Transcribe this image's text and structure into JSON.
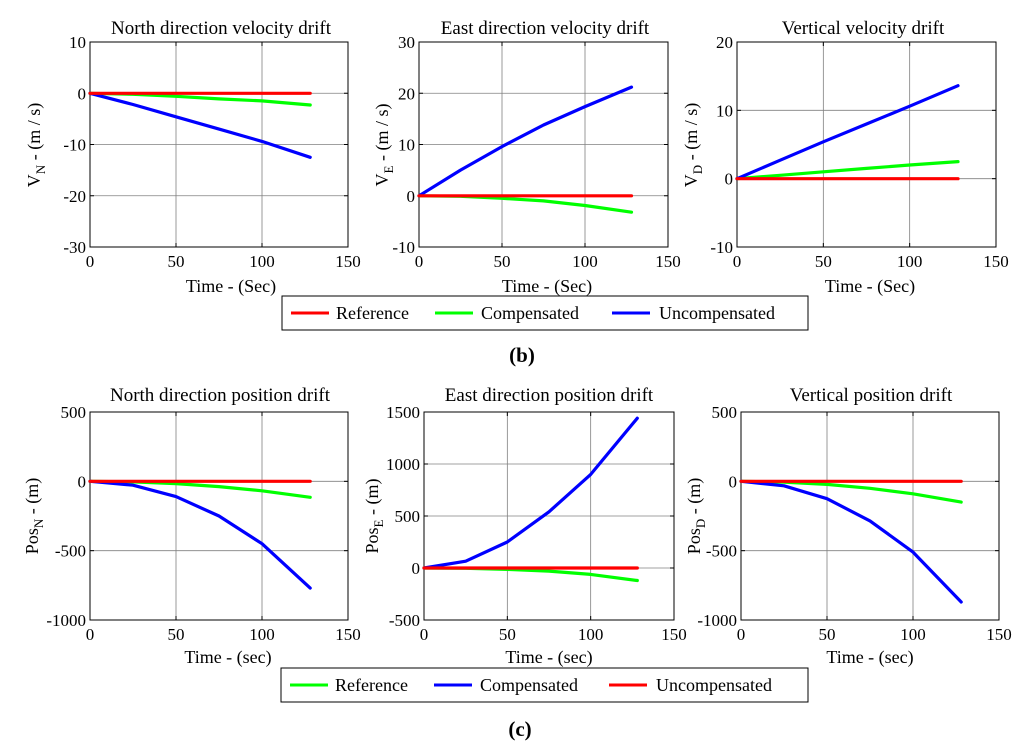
{
  "figure": {
    "panel_b_label": "b",
    "panel_c_label": "c"
  },
  "legend_b": [
    {
      "label": "Reference",
      "color": "#ff0000"
    },
    {
      "label": "Compensated",
      "color": "#00ff00"
    },
    {
      "label": "Uncompensated",
      "color": "#0000ff"
    }
  ],
  "legend_c": [
    {
      "label": "Reference",
      "color": "#00ff00"
    },
    {
      "label": "Compensated",
      "color": "#0000ff"
    },
    {
      "label": "Uncompensated",
      "color": "#ff0000"
    }
  ],
  "chart_data": [
    {
      "type": "line",
      "title": "North direction velocity drift",
      "ylabel_main": "V",
      "ylabel_sub": "N",
      "ylabel_rest": " - (m / s)",
      "xlabel": "Time - (Sec)",
      "xlim": [
        0,
        150
      ],
      "ylim": [
        -30,
        10
      ],
      "xticks": [
        0,
        50,
        100,
        150
      ],
      "yticks": [
        -30,
        -20,
        -10,
        0,
        10
      ],
      "grid": true,
      "series": [
        {
          "name": "Reference",
          "color": "#ff0000",
          "x": [
            0,
            128
          ],
          "y": [
            0,
            0
          ]
        },
        {
          "name": "Compensated",
          "color": "#00ff00",
          "x": [
            0,
            25,
            50,
            75,
            100,
            128
          ],
          "y": [
            0,
            -0.2,
            -0.6,
            -1.1,
            -1.5,
            -2.3
          ]
        },
        {
          "name": "Uncompensated",
          "color": "#0000ff",
          "x": [
            0,
            25,
            50,
            75,
            100,
            128
          ],
          "y": [
            0,
            -2.2,
            -4.6,
            -7.0,
            -9.4,
            -12.5
          ]
        }
      ]
    },
    {
      "type": "line",
      "title": "East direction velocity drift",
      "ylabel_main": "V",
      "ylabel_sub": "E",
      "ylabel_rest": " - (m / s)",
      "xlabel": "Time - (Sec)",
      "xlim": [
        0,
        150
      ],
      "ylim": [
        -10,
        30
      ],
      "xticks": [
        0,
        50,
        100,
        150
      ],
      "yticks": [
        -10,
        0,
        10,
        20,
        30
      ],
      "grid": true,
      "series": [
        {
          "name": "Reference",
          "color": "#ff0000",
          "x": [
            0,
            128
          ],
          "y": [
            0,
            0
          ]
        },
        {
          "name": "Compensated",
          "color": "#00ff00",
          "x": [
            0,
            25,
            50,
            75,
            100,
            128
          ],
          "y": [
            0,
            -0.1,
            -0.5,
            -1.0,
            -1.9,
            -3.2
          ]
        },
        {
          "name": "Uncompensated",
          "color": "#0000ff",
          "x": [
            0,
            25,
            50,
            75,
            100,
            128
          ],
          "y": [
            0,
            5.0,
            9.6,
            13.8,
            17.4,
            21.2
          ]
        }
      ]
    },
    {
      "type": "line",
      "title": "Vertical velocity  drift",
      "ylabel_main": "V",
      "ylabel_sub": "D",
      "ylabel_rest": " - (m / s)",
      "xlabel": "Time - (Sec)",
      "xlim": [
        0,
        150
      ],
      "ylim": [
        -10,
        20
      ],
      "xticks": [
        0,
        50,
        100,
        150
      ],
      "yticks": [
        -10,
        0,
        10,
        20
      ],
      "grid": true,
      "series": [
        {
          "name": "Reference",
          "color": "#ff0000",
          "x": [
            0,
            128
          ],
          "y": [
            0,
            0
          ]
        },
        {
          "name": "Compensated",
          "color": "#00ff00",
          "x": [
            0,
            25,
            50,
            75,
            100,
            128
          ],
          "y": [
            0,
            0.5,
            1.0,
            1.5,
            2.0,
            2.5
          ]
        },
        {
          "name": "Uncompensated",
          "color": "#0000ff",
          "x": [
            0,
            25,
            50,
            75,
            100,
            128
          ],
          "y": [
            0,
            2.7,
            5.4,
            8.0,
            10.6,
            13.6
          ]
        }
      ]
    },
    {
      "type": "line",
      "title": "North direction position drift",
      "ylabel_main": "Pos",
      "ylabel_sub": "N",
      "ylabel_rest": " - (m)",
      "xlabel": "Time - (sec)",
      "xlim": [
        0,
        150
      ],
      "ylim": [
        -1000,
        500
      ],
      "xticks": [
        0,
        50,
        100,
        150
      ],
      "yticks": [
        -1000,
        -500,
        0,
        500
      ],
      "grid": true,
      "series": [
        {
          "name": "Reference",
          "color": "#00ff00",
          "x": [
            0,
            25,
            50,
            75,
            100,
            128
          ],
          "y": [
            0,
            -4,
            -16,
            -38,
            -68,
            -115
          ]
        },
        {
          "name": "Compensated",
          "color": "#0000ff",
          "x": [
            0,
            25,
            50,
            75,
            100,
            128
          ],
          "y": [
            0,
            -28,
            -110,
            -250,
            -450,
            -770
          ]
        },
        {
          "name": "Uncompensated",
          "color": "#ff0000",
          "x": [
            0,
            128
          ],
          "y": [
            0,
            0
          ]
        }
      ]
    },
    {
      "type": "line",
      "title": "East direction position drift",
      "ylabel_main": "Pos",
      "ylabel_sub": "E",
      "ylabel_rest": " - (m)",
      "xlabel": "Time - (sec)",
      "xlim": [
        0,
        150
      ],
      "ylim": [
        -500,
        1500
      ],
      "xticks": [
        0,
        50,
        100,
        150
      ],
      "yticks": [
        -500,
        0,
        500,
        1000,
        1500
      ],
      "grid": true,
      "series": [
        {
          "name": "Reference",
          "color": "#00ff00",
          "x": [
            0,
            25,
            50,
            75,
            100,
            128
          ],
          "y": [
            0,
            -3,
            -13,
            -30,
            -62,
            -120
          ]
        },
        {
          "name": "Compensated",
          "color": "#0000ff",
          "x": [
            0,
            25,
            50,
            75,
            100,
            128
          ],
          "y": [
            0,
            65,
            250,
            540,
            900,
            1440
          ]
        },
        {
          "name": "Uncompensated",
          "color": "#ff0000",
          "x": [
            0,
            128
          ],
          "y": [
            0,
            0
          ]
        }
      ]
    },
    {
      "type": "line",
      "title": "Vertical position drift",
      "ylabel_main": "Pos",
      "ylabel_sub": "D",
      "ylabel_rest": " - (m)",
      "xlabel": "Time - (sec)",
      "xlim": [
        0,
        150
      ],
      "ylim": [
        -1000,
        500
      ],
      "xticks": [
        0,
        50,
        100,
        150
      ],
      "yticks": [
        -1000,
        -500,
        0,
        500
      ],
      "grid": true,
      "series": [
        {
          "name": "Reference",
          "color": "#00ff00",
          "x": [
            0,
            25,
            50,
            75,
            100,
            128
          ],
          "y": [
            0,
            -6,
            -22,
            -50,
            -90,
            -150
          ]
        },
        {
          "name": "Compensated",
          "color": "#0000ff",
          "x": [
            0,
            25,
            50,
            75,
            100,
            128
          ],
          "y": [
            0,
            -32,
            -125,
            -285,
            -510,
            -870
          ]
        },
        {
          "name": "Uncompensated",
          "color": "#ff0000",
          "x": [
            0,
            128
          ],
          "y": [
            0,
            0
          ]
        }
      ]
    }
  ]
}
